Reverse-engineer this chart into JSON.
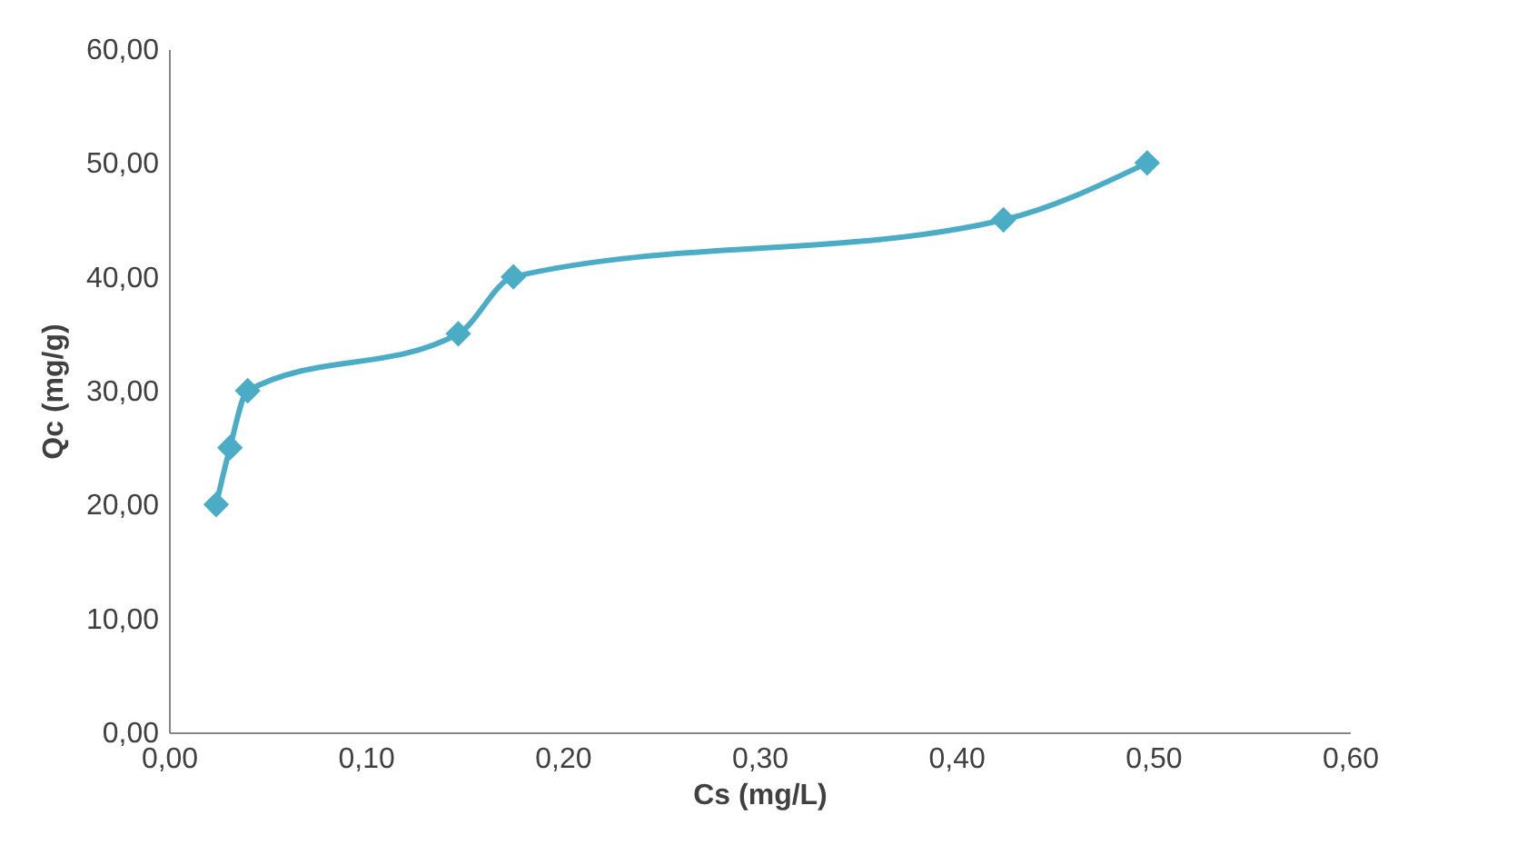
{
  "chart_data": {
    "type": "line",
    "xlabel": "Cs (mg/L)",
    "ylabel": "Qc (mg/g)",
    "x": [
      0.024,
      0.031,
      0.04,
      0.147,
      0.175,
      0.424,
      0.497
    ],
    "series": [
      {
        "color": "#4bacc6",
        "values": [
          20,
          25,
          30,
          35,
          40,
          45,
          50
        ]
      }
    ],
    "marker": "diamond",
    "line_style": "solid",
    "grid": false,
    "xlim": [
      0,
      0.6
    ],
    "ylim": [
      0,
      60
    ],
    "xticks": [
      {
        "value": 0,
        "label": "0,00"
      },
      {
        "value": 0.1,
        "label": "0,10"
      },
      {
        "value": 0.2,
        "label": "0,20"
      },
      {
        "value": 0.3,
        "label": "0,30"
      },
      {
        "value": 0.4,
        "label": "0,40"
      },
      {
        "value": 0.5,
        "label": "0,50"
      },
      {
        "value": 0.6,
        "label": "0,60"
      }
    ],
    "yticks": [
      {
        "value": 0,
        "label": "0,00"
      },
      {
        "value": 10,
        "label": "10,00"
      },
      {
        "value": 20,
        "label": "20,00"
      },
      {
        "value": 30,
        "label": "30,00"
      },
      {
        "value": 40,
        "label": "40,00"
      },
      {
        "value": 50,
        "label": "50,00"
      },
      {
        "value": 60,
        "label": "60,00"
      }
    ]
  }
}
